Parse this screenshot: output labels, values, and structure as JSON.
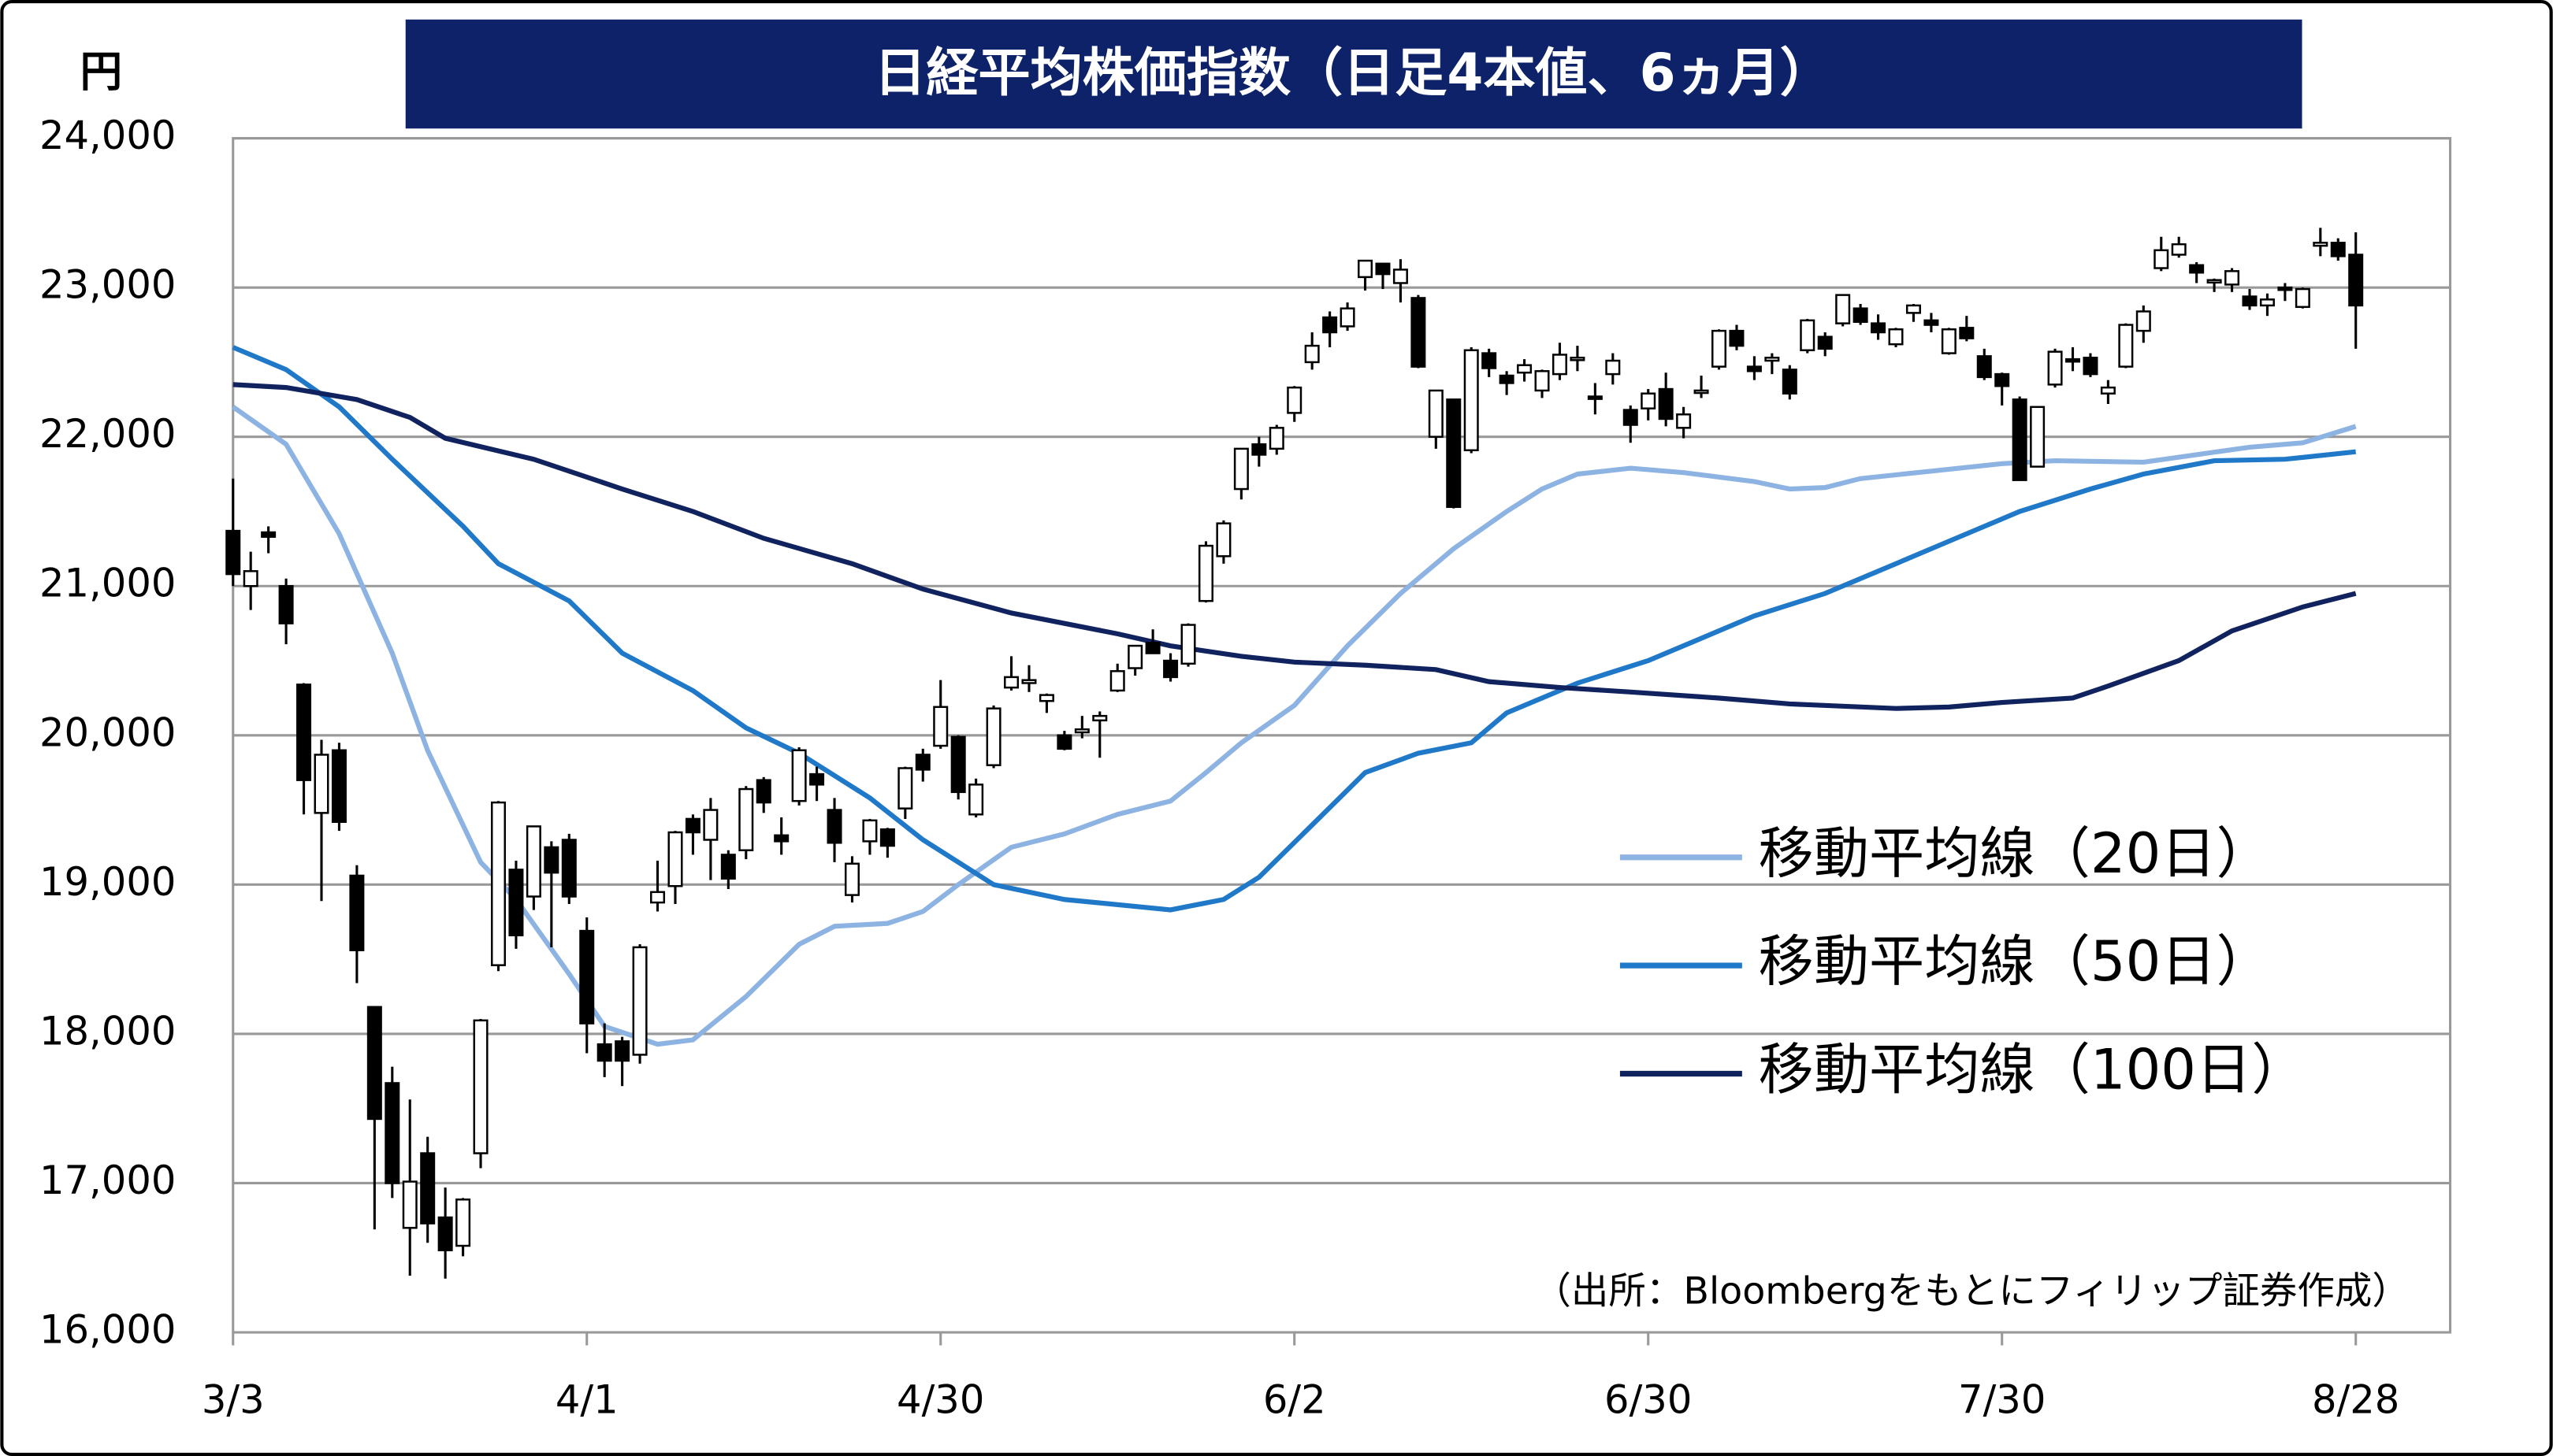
{
  "chart_data": {
    "type": "candlestick",
    "title": "日経平均株価指数（日足4本値、6ヵ月）",
    "y_unit": "円",
    "note": "（出所：Bloombergをもとにフィリップ証券作成）",
    "categories": [
      "3/3",
      null,
      null,
      null,
      null,
      null,
      null,
      null,
      null,
      null,
      null,
      null,
      null,
      null,
      null,
      null,
      null,
      null,
      null,
      null,
      "4/1",
      null,
      null,
      null,
      null,
      null,
      null,
      null,
      null,
      null,
      null,
      null,
      null,
      null,
      null,
      null,
      null,
      null,
      null,
      null,
      "4/30",
      null,
      null,
      null,
      null,
      null,
      null,
      null,
      null,
      null,
      null,
      null,
      null,
      null,
      null,
      null,
      null,
      null,
      null,
      null,
      "6/2",
      null,
      null,
      null,
      null,
      null,
      null,
      null,
      null,
      null,
      null,
      null,
      null,
      null,
      null,
      null,
      null,
      null,
      null,
      null,
      "6/30",
      null,
      null,
      null,
      null,
      null,
      null,
      null,
      null,
      null,
      null,
      null,
      null,
      null,
      null,
      null,
      null,
      null,
      null,
      null,
      "7/30",
      null,
      null,
      null,
      null,
      null,
      null,
      null,
      null,
      null,
      null,
      null,
      null,
      null,
      null,
      null,
      null,
      null,
      null,
      null,
      "8/28"
    ],
    "ohlc": [
      [
        21370,
        21720,
        21000,
        21080
      ],
      [
        21000,
        21230,
        20840,
        21100
      ],
      [
        21360,
        21400,
        21220,
        21330
      ],
      [
        21000,
        21050,
        20610,
        20750
      ],
      [
        20340,
        20350,
        19470,
        19700
      ],
      [
        19480,
        19970,
        18890,
        19870
      ],
      [
        19900,
        19950,
        19360,
        19420
      ],
      [
        19060,
        19130,
        18340,
        18560
      ],
      [
        18180,
        18180,
        16690,
        17430
      ],
      [
        17670,
        17780,
        16900,
        17000
      ],
      [
        16700,
        17560,
        16380,
        17010
      ],
      [
        17200,
        17310,
        16600,
        16730
      ],
      [
        16770,
        16970,
        16360,
        16550
      ],
      [
        16580,
        16900,
        16510,
        16890
      ],
      [
        17200,
        18100,
        17100,
        18090
      ],
      [
        18460,
        19560,
        18420,
        19550
      ],
      [
        19100,
        19160,
        18570,
        18660
      ],
      [
        18920,
        19390,
        18830,
        19390
      ],
      [
        19250,
        19290,
        18580,
        19080
      ],
      [
        19300,
        19340,
        18870,
        18920
      ],
      [
        18690,
        18780,
        17870,
        18070
      ],
      [
        17930,
        18070,
        17710,
        17820
      ],
      [
        17950,
        17980,
        17650,
        17820
      ],
      [
        17860,
        18600,
        17800,
        18580
      ],
      [
        18880,
        19160,
        18820,
        18950
      ],
      [
        18990,
        19360,
        18870,
        19350
      ],
      [
        19440,
        19470,
        19200,
        19350
      ],
      [
        19300,
        19580,
        19030,
        19500
      ],
      [
        19200,
        19230,
        18970,
        19040
      ],
      [
        19230,
        19660,
        19170,
        19640
      ],
      [
        19700,
        19720,
        19480,
        19550
      ],
      [
        19330,
        19450,
        19200,
        19290
      ],
      [
        19560,
        19920,
        19530,
        19900
      ],
      [
        19740,
        19790,
        19560,
        19670
      ],
      [
        19500,
        19580,
        19150,
        19280
      ],
      [
        18930,
        19190,
        18880,
        19140
      ],
      [
        19290,
        19440,
        19200,
        19430
      ],
      [
        19370,
        19380,
        19180,
        19260
      ],
      [
        19510,
        19790,
        19440,
        19780
      ],
      [
        19870,
        19910,
        19690,
        19770
      ],
      [
        19930,
        20370,
        19910,
        20190
      ],
      [
        19990,
        20000,
        19570,
        19620
      ],
      [
        19470,
        19710,
        19450,
        19670
      ],
      [
        19800,
        20200,
        19780,
        20180
      ],
      [
        20320,
        20530,
        20300,
        20390
      ],
      [
        20350,
        20470,
        20290,
        20370
      ],
      [
        20230,
        20280,
        20150,
        20270
      ],
      [
        20000,
        20030,
        19900,
        19910
      ],
      [
        20020,
        20130,
        19980,
        20040
      ],
      [
        20100,
        20160,
        19850,
        20130
      ],
      [
        20300,
        20480,
        20290,
        20430
      ],
      [
        20450,
        20600,
        20400,
        20600
      ],
      [
        20620,
        20710,
        20550,
        20550
      ],
      [
        20500,
        20550,
        20360,
        20390
      ],
      [
        20480,
        20750,
        20460,
        20740
      ],
      [
        20900,
        21300,
        20890,
        21270
      ],
      [
        21200,
        21440,
        21150,
        21420
      ],
      [
        21650,
        21920,
        21580,
        21920
      ],
      [
        21950,
        22000,
        21800,
        21880
      ],
      [
        21920,
        22080,
        21880,
        22060
      ],
      [
        22160,
        22340,
        22100,
        22330
      ],
      [
        22500,
        22700,
        22450,
        22610
      ],
      [
        22800,
        22840,
        22600,
        22700
      ],
      [
        22740,
        22900,
        22710,
        22860
      ],
      [
        23070,
        23180,
        22980,
        23180
      ],
      [
        23160,
        23160,
        22990,
        23090
      ],
      [
        23030,
        23190,
        22900,
        23120
      ],
      [
        22930,
        22950,
        22460,
        22470
      ],
      [
        22000,
        22310,
        21920,
        22310
      ],
      [
        22250,
        22250,
        21520,
        21530
      ],
      [
        21910,
        22600,
        21890,
        22580
      ],
      [
        22560,
        22590,
        22400,
        22460
      ],
      [
        22410,
        22440,
        22280,
        22360
      ],
      [
        22430,
        22520,
        22370,
        22480
      ],
      [
        22310,
        22450,
        22260,
        22440
      ],
      [
        22420,
        22630,
        22380,
        22550
      ],
      [
        22530,
        22610,
        22440,
        22530
      ],
      [
        22270,
        22360,
        22150,
        22260
      ],
      [
        22420,
        22560,
        22350,
        22510
      ],
      [
        22180,
        22210,
        21960,
        22080
      ],
      [
        22190,
        22320,
        22110,
        22290
      ],
      [
        22320,
        22430,
        22070,
        22120
      ],
      [
        22060,
        22200,
        21990,
        22150
      ],
      [
        22300,
        22410,
        22260,
        22310
      ],
      [
        22470,
        22720,
        22450,
        22710
      ],
      [
        22710,
        22750,
        22580,
        22610
      ],
      [
        22470,
        22540,
        22380,
        22440
      ],
      [
        22510,
        22560,
        22420,
        22530
      ],
      [
        22450,
        22480,
        22250,
        22290
      ],
      [
        22580,
        22790,
        22560,
        22780
      ],
      [
        22670,
        22700,
        22540,
        22590
      ],
      [
        22760,
        22950,
        22740,
        22950
      ],
      [
        22860,
        22890,
        22750,
        22770
      ],
      [
        22760,
        22820,
        22650,
        22700
      ],
      [
        22620,
        22730,
        22600,
        22720
      ],
      [
        22830,
        22890,
        22770,
        22880
      ],
      [
        22780,
        22830,
        22700,
        22750
      ],
      [
        22560,
        22730,
        22550,
        22720
      ],
      [
        22730,
        22810,
        22640,
        22660
      ],
      [
        22540,
        22590,
        22380,
        22400
      ],
      [
        22420,
        22430,
        22210,
        22340
      ],
      [
        22250,
        22270,
        21710,
        21710
      ],
      [
        21800,
        22200,
        21800,
        22200
      ],
      [
        22350,
        22590,
        22330,
        22570
      ],
      [
        22520,
        22600,
        22440,
        22510
      ],
      [
        22530,
        22560,
        22400,
        22420
      ],
      [
        22290,
        22380,
        22220,
        22330
      ],
      [
        22470,
        22760,
        22460,
        22750
      ],
      [
        22710,
        22880,
        22630,
        22840
      ],
      [
        23130,
        23340,
        23110,
        23250
      ],
      [
        23220,
        23340,
        23200,
        23290
      ],
      [
        23150,
        23170,
        23030,
        23100
      ],
      [
        23050,
        23060,
        22970,
        23050
      ],
      [
        23020,
        23130,
        22970,
        23110
      ],
      [
        22940,
        22990,
        22850,
        22880
      ],
      [
        22880,
        22960,
        22810,
        22920
      ],
      [
        23000,
        23030,
        22910,
        22990
      ],
      [
        22870,
        23000,
        22860,
        22990
      ],
      [
        23280,
        23400,
        23210,
        23300
      ],
      [
        23300,
        23330,
        23180,
        23210
      ],
      [
        23220,
        23370,
        22590,
        22880
      ]
    ],
    "series": [
      {
        "name": "移動平均線（20日）",
        "color": "#8db3e2",
        "x": [
          0,
          3,
          6,
          9,
          11,
          14,
          16,
          19,
          21,
          24,
          26,
          29,
          32,
          34,
          37,
          39,
          41,
          44,
          47,
          50,
          53,
          55,
          57,
          60,
          63,
          66,
          69,
          72,
          74,
          76,
          79,
          82,
          86,
          88,
          90,
          92,
          96,
          100,
          103,
          108,
          111,
          114,
          117,
          120
        ],
        "values": [
          22200,
          21950,
          21350,
          20550,
          19900,
          19150,
          18900,
          18400,
          18050,
          17930,
          17960,
          18250,
          18600,
          18720,
          18740,
          18820,
          19000,
          19250,
          19340,
          19470,
          19560,
          19750,
          19950,
          20200,
          20600,
          20950,
          21250,
          21500,
          21650,
          21750,
          21790,
          21760,
          21700,
          21650,
          21660,
          21720,
          21770,
          21820,
          21840,
          21830,
          21880,
          21930,
          21960,
          22070
        ]
      },
      {
        "name": "移動平均線（50日）",
        "color": "#1f78c8",
        "x": [
          0,
          3,
          6,
          9,
          13,
          15,
          19,
          22,
          26,
          29,
          32,
          36,
          39,
          43,
          47,
          53,
          56,
          58,
          61,
          64,
          67,
          70,
          72,
          76,
          80,
          83,
          86,
          90,
          94,
          97,
          101,
          105,
          108,
          112,
          116,
          120
        ],
        "values": [
          22600,
          22450,
          22200,
          21850,
          21400,
          21150,
          20900,
          20550,
          20300,
          20050,
          19880,
          19580,
          19300,
          19000,
          18900,
          18830,
          18900,
          19050,
          19400,
          19750,
          19880,
          19950,
          20150,
          20350,
          20500,
          20650,
          20800,
          20950,
          21150,
          21300,
          21500,
          21650,
          21750,
          21840,
          21850,
          21900
        ]
      },
      {
        "name": "移動平均線（100日）",
        "color": "#10235f",
        "x": [
          0,
          3,
          7,
          10,
          12,
          17,
          22,
          26,
          30,
          35,
          39,
          44,
          50,
          53,
          57,
          60,
          64,
          68,
          71,
          75,
          79,
          84,
          88,
          94,
          97,
          100,
          104,
          106,
          110,
          113,
          117,
          120
        ],
        "values": [
          22350,
          22330,
          22250,
          22130,
          21990,
          21850,
          21650,
          21500,
          21320,
          21150,
          20980,
          20820,
          20680,
          20600,
          20530,
          20490,
          20470,
          20440,
          20360,
          20320,
          20290,
          20250,
          20210,
          20180,
          20190,
          20220,
          20250,
          20330,
          20500,
          20700,
          20860,
          20950
        ]
      }
    ],
    "ylim": [
      16000,
      24000
    ],
    "yticks": [
      {
        "value": 16000,
        "label": "16,000"
      },
      {
        "value": 17000,
        "label": "17,000"
      },
      {
        "value": 18000,
        "label": "18,000"
      },
      {
        "value": 19000,
        "label": "19,000"
      },
      {
        "value": 20000,
        "label": "20,000"
      },
      {
        "value": 21000,
        "label": "21,000"
      },
      {
        "value": 22000,
        "label": "22,000"
      },
      {
        "value": 23000,
        "label": "23,000"
      },
      {
        "value": 24000,
        "label": "24,000"
      }
    ],
    "grid": true
  }
}
